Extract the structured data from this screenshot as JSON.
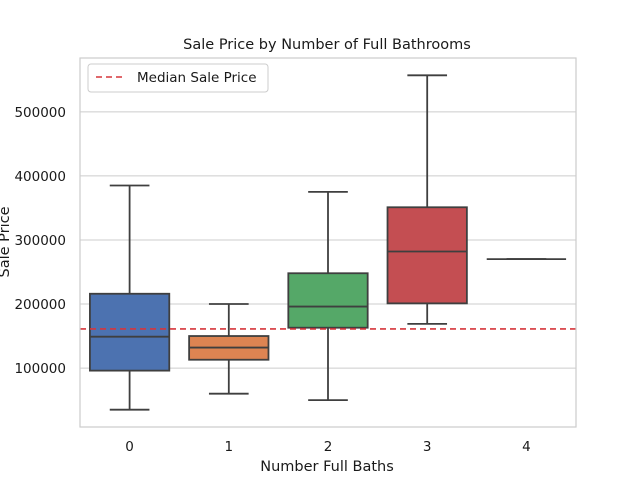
{
  "chart_data": {
    "type": "box",
    "title": "Sale Price by Number of Full Bathrooms",
    "xlabel": "Number Full Baths",
    "ylabel": "Sale Price",
    "categories": [
      "0",
      "1",
      "2",
      "3",
      "4"
    ],
    "boxes": [
      {
        "category": "0",
        "whisker_low": 35000,
        "q1": 96000,
        "median": 149000,
        "q3": 216000,
        "whisker_high": 385000,
        "color": "#4c72b0"
      },
      {
        "category": "1",
        "whisker_low": 60000,
        "q1": 113000,
        "median": 132000,
        "q3": 150000,
        "whisker_high": 200000,
        "color": "#dd8452"
      },
      {
        "category": "2",
        "whisker_low": 50000,
        "q1": 163000,
        "median": 196000,
        "q3": 248000,
        "whisker_high": 375000,
        "color": "#55a868"
      },
      {
        "category": "3",
        "whisker_low": 169000,
        "q1": 201000,
        "median": 282000,
        "q3": 351000,
        "whisker_high": 557000,
        "color": "#c44e52"
      },
      {
        "category": "4",
        "whisker_low": 270000,
        "q1": 270000,
        "median": 270000,
        "q3": 270000,
        "whisker_high": 270000,
        "color": "#8172b3"
      }
    ],
    "reference_line": {
      "label": "Median Sale Price",
      "value": 161000,
      "color": "#d6363b",
      "style": "dashed"
    },
    "y_ticks": [
      100000,
      200000,
      300000,
      400000,
      500000
    ],
    "ylim": [
      8000,
      584000
    ],
    "grid": "horizontal",
    "legend_position": "top-left"
  }
}
